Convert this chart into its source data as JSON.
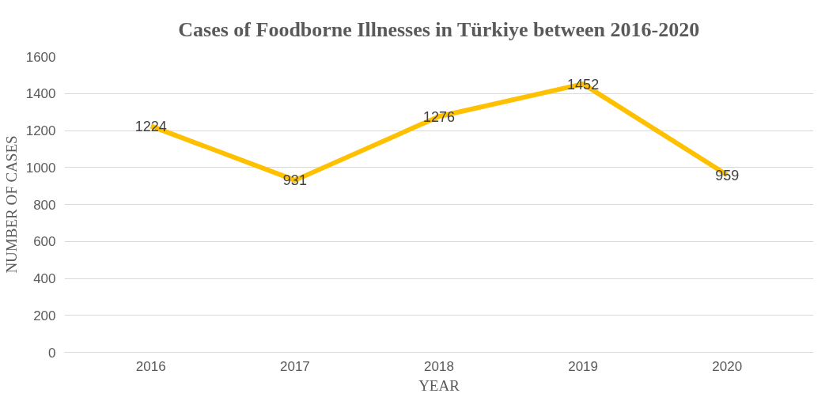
{
  "chart_data": {
    "type": "line",
    "title": "Cases of Foodborne Illnesses in Türkiye between 2016-2020",
    "xlabel": "YEAR",
    "ylabel": "NUMBER OF CASES",
    "categories": [
      "2016",
      "2017",
      "2018",
      "2019",
      "2020"
    ],
    "series": [
      {
        "color": "#ffc000",
        "values": [
          1224,
          931,
          1276,
          1452,
          959
        ]
      }
    ],
    "ylim": [
      0,
      1600
    ],
    "yticks": [
      0,
      200,
      400,
      600,
      800,
      1000,
      1200,
      1400,
      1600
    ],
    "grid": "y",
    "data_labels": true,
    "marker": "none",
    "line_style": "solid"
  }
}
